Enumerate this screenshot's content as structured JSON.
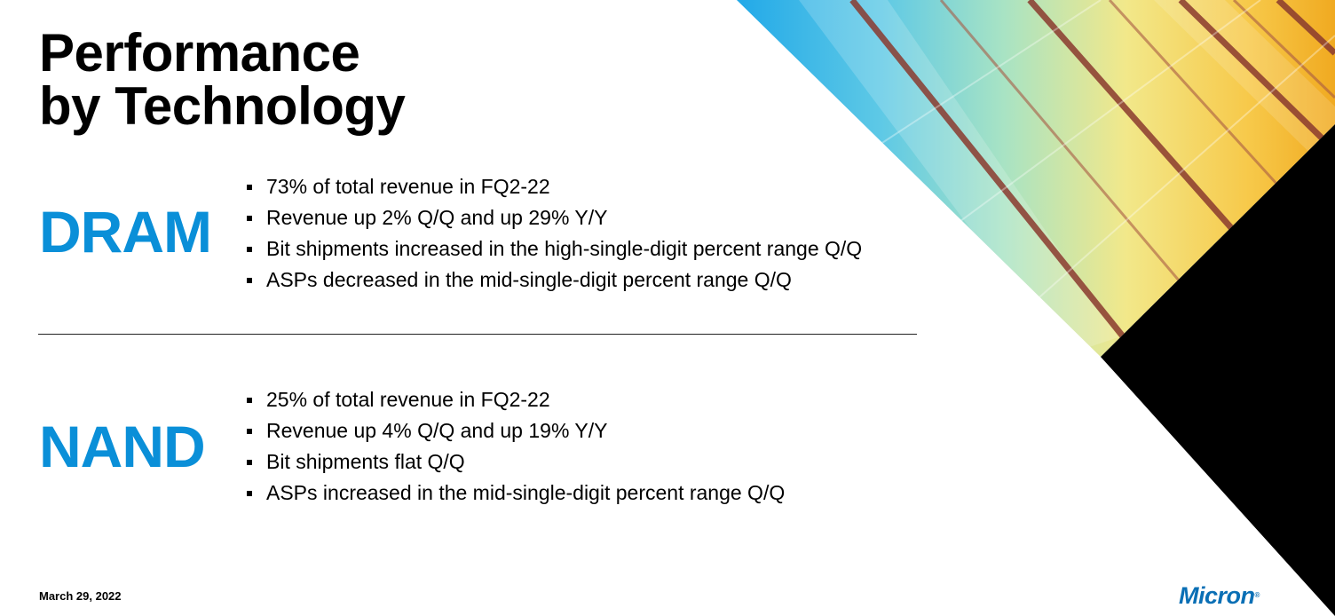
{
  "title": {
    "line1": "Performance",
    "line2": "by Technology"
  },
  "sections": [
    {
      "label": "DRAM",
      "bullets": [
        "73% of total revenue in FQ2-22",
        "Revenue up 2% Q/Q and up 29% Y/Y",
        "Bit shipments increased in the high-single-digit percent range Q/Q",
        "ASPs decreased in the mid-single-digit percent range Q/Q"
      ]
    },
    {
      "label": "NAND",
      "bullets": [
        "25% of total revenue in FQ2-22",
        "Revenue up 4% Q/Q and up 19% Y/Y",
        "Bit shipments flat Q/Q",
        "ASPs increased in the mid-single-digit percent range Q/Q"
      ]
    }
  ],
  "footer": {
    "date": "March 29, 2022"
  },
  "logo": {
    "text": "Micron",
    "mark": "®"
  },
  "colors": {
    "accent": "#0a8fd8",
    "logo": "#0a6fb5",
    "corner_black": "#000000"
  }
}
